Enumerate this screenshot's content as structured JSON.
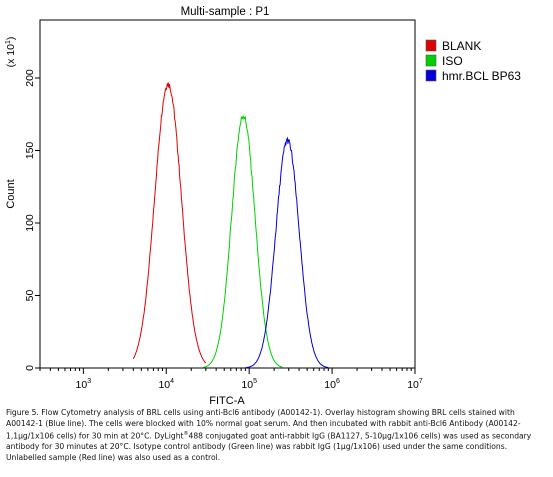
{
  "chart_data": {
    "type": "line",
    "title": "Multi-sample : P1",
    "xlabel": "FITC-A",
    "ylabel": "Count",
    "y_multiplier_label": "(x 10",
    "y_multiplier_exp": "1",
    "x_scale": "log",
    "xlim": [
      300,
      10000000
    ],
    "ylim": [
      0,
      240
    ],
    "x_ticks": [
      {
        "base": "10",
        "exp": "3",
        "value": 1000
      },
      {
        "base": "10",
        "exp": "4",
        "value": 10000
      },
      {
        "base": "10",
        "exp": "5",
        "value": 100000
      },
      {
        "base": "10",
        "exp": "6",
        "value": 1000000
      },
      {
        "base": "10",
        "exp": "7",
        "value": 10000000
      }
    ],
    "y_ticks": [
      {
        "label": "0",
        "value": 0
      },
      {
        "label": "50",
        "value": 50
      },
      {
        "label": "100",
        "value": 100
      },
      {
        "label": "150",
        "value": 150
      },
      {
        "label": "200",
        "value": 200
      }
    ],
    "legend_position": "top-right",
    "series": [
      {
        "name": "BLANK",
        "color": "#e00000",
        "mode": 10500,
        "peak": 196,
        "sigma_log10": 0.16,
        "xmin": 4000,
        "xmax": 30000
      },
      {
        "name": "ISO",
        "color": "#00d000",
        "mode": 85000,
        "peak": 174,
        "sigma_log10": 0.14,
        "xmin": 28000,
        "xmax": 250000
      },
      {
        "name": "hmr.BCL BP63",
        "color": "#0000d8",
        "mode": 290000,
        "peak": 157,
        "sigma_log10": 0.14,
        "xmin": 90000,
        "xmax": 900000
      }
    ]
  },
  "caption": {
    "text1": "Figure 5. Flow Cytometry analysis of BRL cells using anti-Bcl6 antibody (A00142-1). Overlay histogram showing BRL cells stained with A00142-1 (Blue line). The cells were blocked with 10% normal goat serum.  And then incubated with rabbit anti-Bcl6 Antibody (A00142-1,1µg/1x106 cells) for 30 min at 20°C. DyLight",
    "sup": "®",
    "text2": "488 conjugated goat anti-rabbit IgG (BA1127, 5-10µg/1x106 cells) was used as secondary antibody for 30 minutes at 20°C. Isotype control antibody (Green line) was rabbit IgG (1µg/1x106) used under the same conditions. Unlabelled sample (Red line) was also used as a control."
  }
}
